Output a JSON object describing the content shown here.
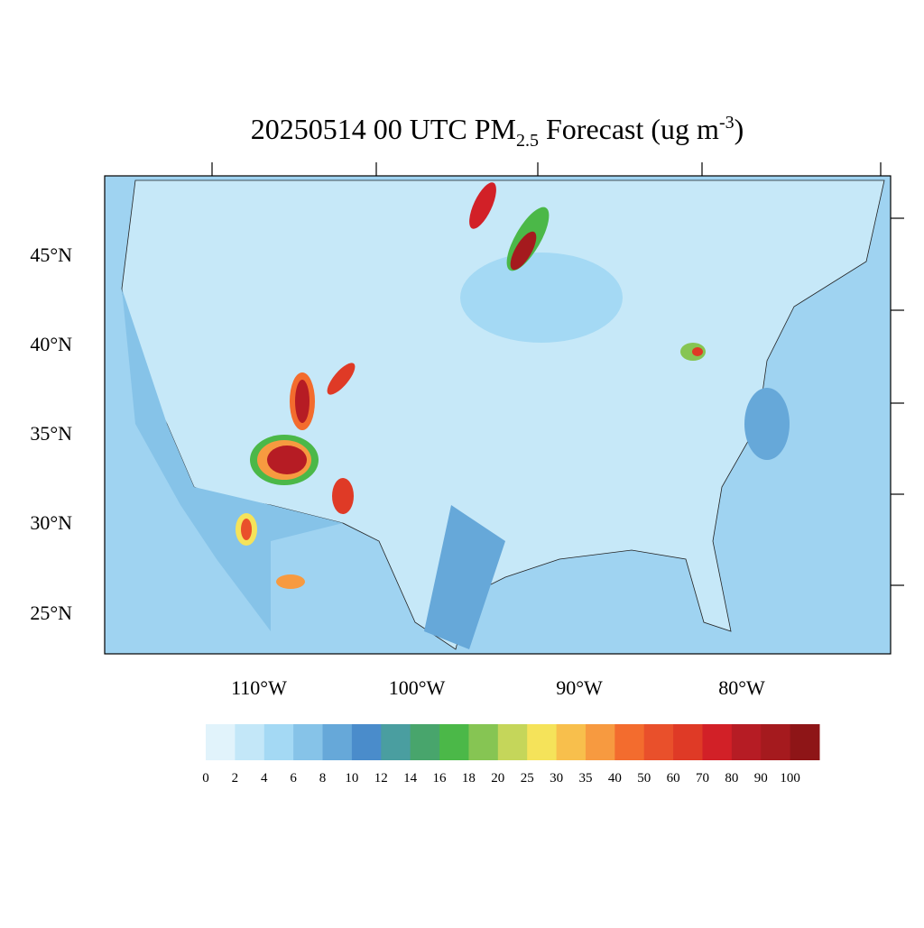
{
  "title": {
    "main": "20250514 00 UTC PM",
    "sub": "2.5",
    "mid": " Forecast (ug m",
    "sup": "-3",
    "end": ")"
  },
  "map": {
    "lat_labels": [
      "45°N",
      "40°N",
      "35°N",
      "30°N",
      "25°N"
    ],
    "lon_labels": [
      "110°W",
      "100°W",
      "90°W",
      "80°W"
    ]
  },
  "colorbar": {
    "colors": [
      "#e1f3fb",
      "#c3e7f8",
      "#a4d9f4",
      "#86c3e8",
      "#66a8d9",
      "#4a8ccb",
      "#4a9ea0",
      "#48a56c",
      "#4bb848",
      "#86c553",
      "#c5d65a",
      "#f5e35a",
      "#f8bf4c",
      "#f79a40",
      "#f36c2e",
      "#e9502b",
      "#df3a26",
      "#d22027",
      "#b61c24",
      "#a51a1e",
      "#8e1517"
    ],
    "labels": [
      "0",
      "2",
      "4",
      "6",
      "8",
      "10",
      "12",
      "14",
      "16",
      "18",
      "20",
      "25",
      "30",
      "35",
      "40",
      "50",
      "60",
      "70",
      "80",
      "90",
      "100"
    ]
  }
}
